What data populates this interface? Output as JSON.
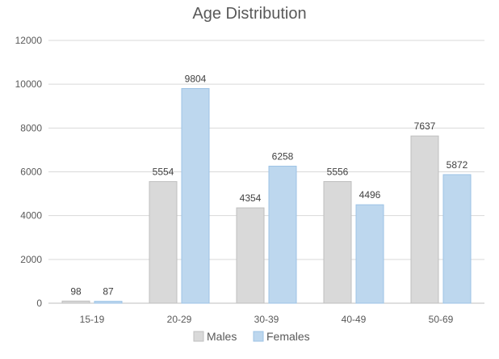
{
  "chart_data": {
    "type": "bar",
    "title": "Age Distribution",
    "categories": [
      "15-19",
      "20-29",
      "30-39",
      "40-49",
      "50-69"
    ],
    "series": [
      {
        "name": "Males",
        "values": [
          98,
          5554,
          4354,
          5556,
          7637
        ],
        "color": "#d9d9d9",
        "stroke": "#bfbfbf"
      },
      {
        "name": "Females",
        "values": [
          87,
          9804,
          6258,
          4496,
          5872
        ],
        "color": "#bdd7ee",
        "stroke": "#9dc3e6"
      }
    ],
    "ylim": [
      0,
      12000
    ],
    "yticks": [
      0,
      2000,
      4000,
      6000,
      8000,
      10000,
      12000
    ],
    "grid": true,
    "legend_position": "bottom",
    "data_labels": true,
    "xlabel": "",
    "ylabel": ""
  }
}
